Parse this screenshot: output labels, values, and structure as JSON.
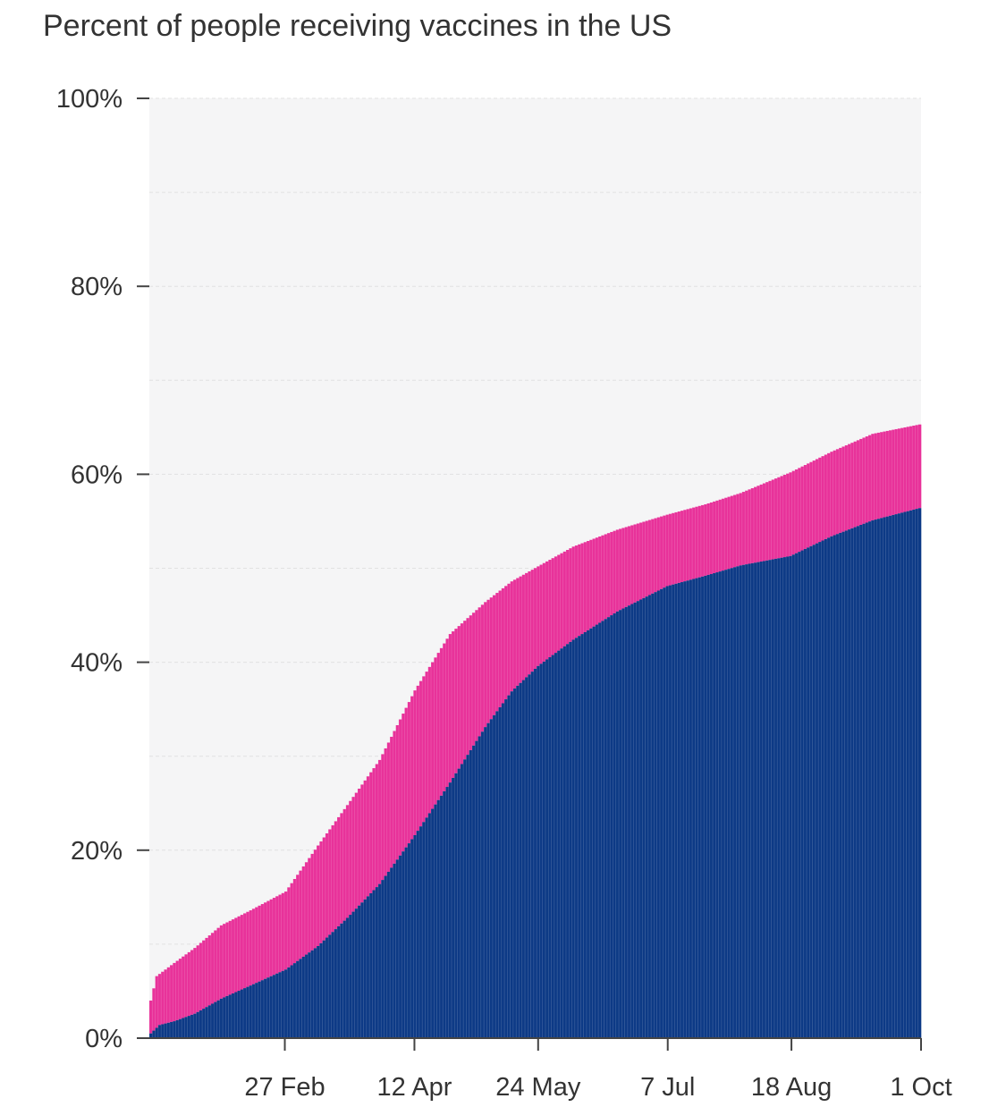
{
  "chart_data": {
    "type": "bar",
    "stacked": true,
    "title": "Percent of people receiving vaccines in the US",
    "xlabel": "",
    "ylabel": "",
    "ylim": [
      0,
      100
    ],
    "y_ticks": [
      "0%",
      "20%",
      "40%",
      "60%",
      "80%",
      "100%"
    ],
    "y_tick_values": [
      0,
      20,
      40,
      60,
      80,
      100
    ],
    "x_ticks": [
      "27 Feb",
      "12 Apr",
      "24 May",
      "7 Jul",
      "18 Aug",
      "1 Oct"
    ],
    "x_tick_dates": [
      "2021-02-27",
      "2021-04-12",
      "2021-05-24",
      "2021-07-07",
      "2021-08-18",
      "2021-10-01"
    ],
    "x_range": [
      "2021-01-12",
      "2021-10-01"
    ],
    "grid": true,
    "legend": "none",
    "colors": {
      "lower_series": "#0d3a86",
      "upper_series": "#e8329a",
      "plot_background": "#f5f5f6",
      "gridline": "#e2e2e2",
      "axis": "#444444",
      "text": "#333333"
    },
    "series_points": {
      "lower": {
        "x": [
          "2021-01-12",
          "2021-01-15",
          "2021-01-20",
          "2021-01-27",
          "2021-02-05",
          "2021-02-15",
          "2021-02-27",
          "2021-03-10",
          "2021-03-20",
          "2021-03-31",
          "2021-04-12",
          "2021-04-24",
          "2021-05-06",
          "2021-05-15",
          "2021-05-24",
          "2021-06-05",
          "2021-06-20",
          "2021-07-07",
          "2021-07-20",
          "2021-08-01",
          "2021-08-18",
          "2021-09-01",
          "2021-09-15",
          "2021-10-01"
        ],
        "y": [
          0.5,
          1.4,
          1.8,
          2.6,
          4.2,
          5.6,
          7.3,
          9.8,
          12.8,
          16.4,
          21.6,
          27.2,
          33.1,
          36.9,
          39.6,
          42.4,
          45.4,
          48.1,
          49.2,
          50.3,
          51.3,
          53.4,
          55.1,
          56.4
        ]
      },
      "total": {
        "x": [
          "2021-01-12",
          "2021-01-14",
          "2021-01-20",
          "2021-01-27",
          "2021-02-05",
          "2021-02-15",
          "2021-02-27",
          "2021-03-10",
          "2021-03-20",
          "2021-03-31",
          "2021-04-12",
          "2021-04-24",
          "2021-05-06",
          "2021-05-15",
          "2021-05-24",
          "2021-06-05",
          "2021-06-20",
          "2021-07-07",
          "2021-07-20",
          "2021-08-01",
          "2021-08-18",
          "2021-09-01",
          "2021-09-15",
          "2021-10-01"
        ],
        "y": [
          4.0,
          6.6,
          8.0,
          9.6,
          12.0,
          13.6,
          15.6,
          20.5,
          24.8,
          29.6,
          37.0,
          43.0,
          46.4,
          48.6,
          50.2,
          52.3,
          54.1,
          55.7,
          56.8,
          58.0,
          60.2,
          62.4,
          64.3,
          65.3
        ]
      }
    }
  }
}
